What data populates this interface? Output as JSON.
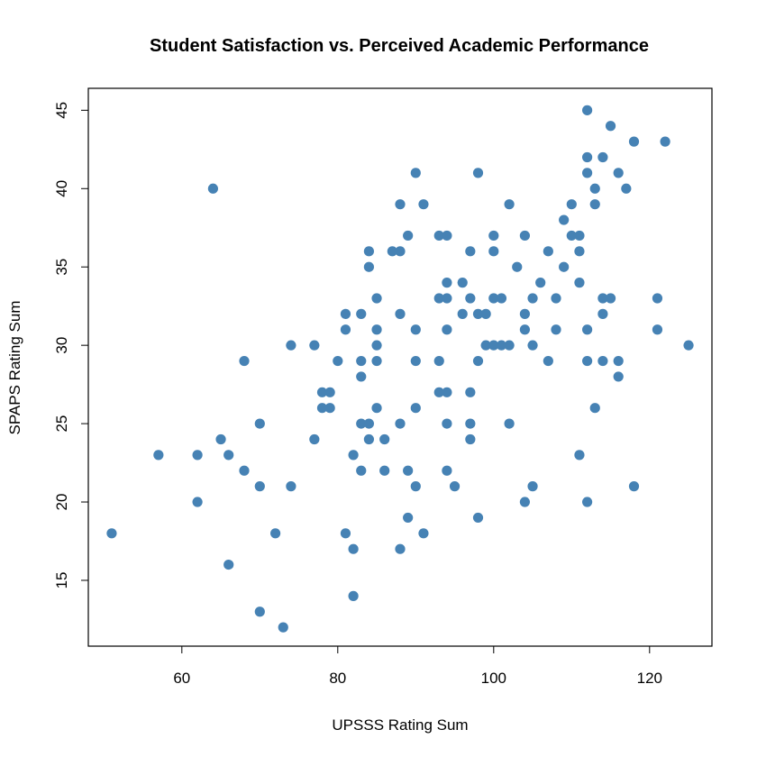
{
  "chart_data": {
    "type": "scatter",
    "title": "Student Satisfaction vs. Perceived Academic Performance",
    "xlabel": "UPSSS Rating Sum",
    "ylabel": "SPAPS Rating Sum",
    "xlim": [
      48,
      128
    ],
    "ylim": [
      10.8,
      46.4
    ],
    "x_ticks": [
      60,
      80,
      100,
      120
    ],
    "y_ticks": [
      15,
      20,
      25,
      30,
      35,
      40,
      45
    ],
    "grid": false,
    "point_color": "#4682B4",
    "points": [
      [
        51,
        18
      ],
      [
        57,
        23
      ],
      [
        62,
        23
      ],
      [
        62,
        20
      ],
      [
        64,
        40
      ],
      [
        65,
        24
      ],
      [
        66,
        23
      ],
      [
        66,
        16
      ],
      [
        68,
        29
      ],
      [
        68,
        22
      ],
      [
        70,
        25
      ],
      [
        70,
        21
      ],
      [
        70,
        13
      ],
      [
        72,
        18
      ],
      [
        73,
        12
      ],
      [
        74,
        30
      ],
      [
        74,
        21
      ],
      [
        77,
        30
      ],
      [
        77,
        24
      ],
      [
        78,
        27
      ],
      [
        78,
        26
      ],
      [
        79,
        27
      ],
      [
        79,
        26
      ],
      [
        80,
        29
      ],
      [
        81,
        32
      ],
      [
        81,
        31
      ],
      [
        81,
        18
      ],
      [
        82,
        23
      ],
      [
        82,
        17
      ],
      [
        82,
        14
      ],
      [
        83,
        32
      ],
      [
        83,
        29
      ],
      [
        83,
        28
      ],
      [
        83,
        25
      ],
      [
        83,
        22
      ],
      [
        84,
        36
      ],
      [
        84,
        35
      ],
      [
        84,
        25
      ],
      [
        84,
        24
      ],
      [
        85,
        33
      ],
      [
        85,
        31
      ],
      [
        85,
        30
      ],
      [
        85,
        29
      ],
      [
        85,
        26
      ],
      [
        86,
        24
      ],
      [
        86,
        22
      ],
      [
        87,
        36
      ],
      [
        88,
        39
      ],
      [
        88,
        36
      ],
      [
        88,
        32
      ],
      [
        88,
        25
      ],
      [
        88,
        17
      ],
      [
        89,
        37
      ],
      [
        89,
        22
      ],
      [
        89,
        19
      ],
      [
        90,
        41
      ],
      [
        90,
        31
      ],
      [
        90,
        29
      ],
      [
        90,
        26
      ],
      [
        90,
        21
      ],
      [
        91,
        39
      ],
      [
        91,
        18
      ],
      [
        93,
        37
      ],
      [
        93,
        33
      ],
      [
        93,
        29
      ],
      [
        93,
        27
      ],
      [
        94,
        37
      ],
      [
        94,
        34
      ],
      [
        94,
        33
      ],
      [
        94,
        31
      ],
      [
        94,
        27
      ],
      [
        94,
        25
      ],
      [
        94,
        22
      ],
      [
        95,
        21
      ],
      [
        96,
        34
      ],
      [
        96,
        32
      ],
      [
        97,
        36
      ],
      [
        97,
        33
      ],
      [
        97,
        27
      ],
      [
        97,
        25
      ],
      [
        97,
        24
      ],
      [
        98,
        41
      ],
      [
        98,
        32
      ],
      [
        98,
        29
      ],
      [
        98,
        19
      ],
      [
        99,
        32
      ],
      [
        99,
        30
      ],
      [
        100,
        37
      ],
      [
        100,
        36
      ],
      [
        100,
        33
      ],
      [
        100,
        30
      ],
      [
        101,
        33
      ],
      [
        101,
        30
      ],
      [
        102,
        39
      ],
      [
        102,
        30
      ],
      [
        102,
        25
      ],
      [
        103,
        35
      ],
      [
        104,
        37
      ],
      [
        104,
        32
      ],
      [
        104,
        31
      ],
      [
        104,
        20
      ],
      [
        105,
        33
      ],
      [
        105,
        30
      ],
      [
        105,
        21
      ],
      [
        106,
        34
      ],
      [
        107,
        36
      ],
      [
        107,
        29
      ],
      [
        108,
        33
      ],
      [
        108,
        31
      ],
      [
        109,
        38
      ],
      [
        109,
        35
      ],
      [
        110,
        39
      ],
      [
        110,
        37
      ],
      [
        111,
        37
      ],
      [
        111,
        36
      ],
      [
        111,
        34
      ],
      [
        111,
        23
      ],
      [
        112,
        45
      ],
      [
        112,
        42
      ],
      [
        112,
        41
      ],
      [
        112,
        31
      ],
      [
        112,
        29
      ],
      [
        112,
        20
      ],
      [
        113,
        40
      ],
      [
        113,
        39
      ],
      [
        113,
        26
      ],
      [
        114,
        42
      ],
      [
        114,
        33
      ],
      [
        114,
        32
      ],
      [
        114,
        29
      ],
      [
        115,
        44
      ],
      [
        115,
        33
      ],
      [
        116,
        41
      ],
      [
        116,
        29
      ],
      [
        116,
        28
      ],
      [
        117,
        40
      ],
      [
        118,
        43
      ],
      [
        118,
        21
      ],
      [
        121,
        33
      ],
      [
        121,
        31
      ],
      [
        122,
        43
      ],
      [
        125,
        30
      ]
    ]
  }
}
